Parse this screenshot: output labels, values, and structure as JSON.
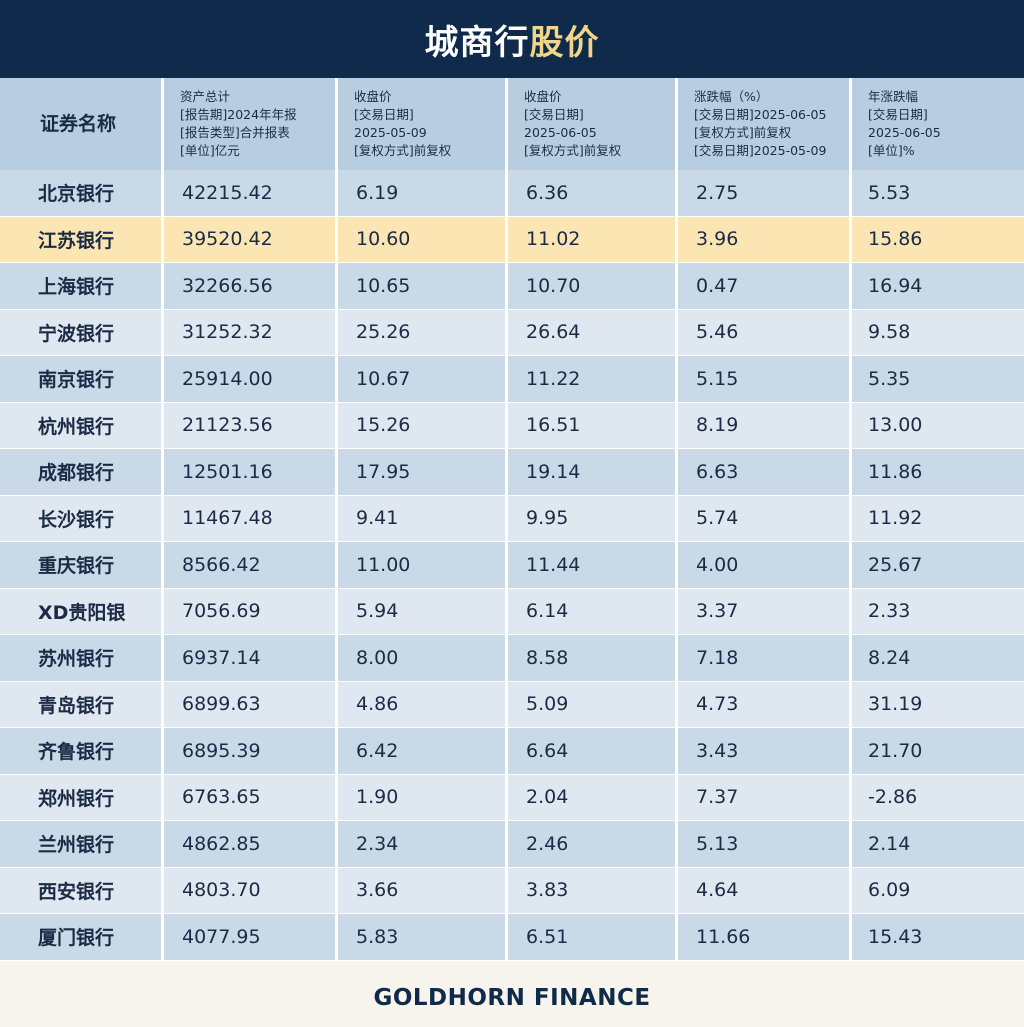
{
  "title": {
    "part1": "城商行",
    "part2": "股价"
  },
  "headers": [
    {
      "lines": [
        "证券名称"
      ]
    },
    {
      "lines": [
        "资产总计",
        "[报告期]2024年年报",
        "[报告类型]合并报表",
        "[单位]亿元"
      ]
    },
    {
      "lines": [
        "收盘价",
        "[交易日期]",
        "2025-05-09",
        "[复权方式]前复权"
      ]
    },
    {
      "lines": [
        "收盘价",
        "[交易日期]",
        "2025-06-05",
        "[复权方式]前复权"
      ]
    },
    {
      "lines": [
        "涨跌幅（%）",
        "[交易日期]2025-06-05",
        "[复权方式]前复权",
        "[交易日期]2025-05-09"
      ]
    },
    {
      "lines": [
        "年涨跌幅",
        "[交易日期]",
        "2025-06-05",
        "[单位]%"
      ]
    }
  ],
  "rows": [
    [
      "北京银行",
      "42215.42",
      "6.19",
      "6.36",
      "2.75",
      "5.53"
    ],
    [
      "江苏银行",
      "39520.42",
      "10.60",
      "11.02",
      "3.96",
      "15.86"
    ],
    [
      "上海银行",
      "32266.56",
      "10.65",
      "10.70",
      "0.47",
      "16.94"
    ],
    [
      "宁波银行",
      "31252.32",
      "25.26",
      "26.64",
      "5.46",
      "9.58"
    ],
    [
      "南京银行",
      "25914.00",
      "10.67",
      "11.22",
      "5.15",
      "5.35"
    ],
    [
      "杭州银行",
      "21123.56",
      "15.26",
      "16.51",
      "8.19",
      "13.00"
    ],
    [
      "成都银行",
      "12501.16",
      "17.95",
      "19.14",
      "6.63",
      "11.86"
    ],
    [
      "长沙银行",
      "11467.48",
      "9.41",
      "9.95",
      "5.74",
      "11.92"
    ],
    [
      "重庆银行",
      "8566.42",
      "11.00",
      "11.44",
      "4.00",
      "25.67"
    ],
    [
      "XD贵阳银",
      "7056.69",
      "5.94",
      "6.14",
      "3.37",
      "2.33"
    ],
    [
      "苏州银行",
      "6937.14",
      "8.00",
      "8.58",
      "7.18",
      "8.24"
    ],
    [
      "青岛银行",
      "6899.63",
      "4.86",
      "5.09",
      "4.73",
      "31.19"
    ],
    [
      "齐鲁银行",
      "6895.39",
      "6.42",
      "6.64",
      "3.43",
      "21.70"
    ],
    [
      "郑州银行",
      "6763.65",
      "1.90",
      "2.04",
      "7.37",
      "-2.86"
    ],
    [
      "兰州银行",
      "4862.85",
      "2.34",
      "2.46",
      "5.13",
      "2.14"
    ],
    [
      "西安银行",
      "4803.70",
      "3.66",
      "3.83",
      "4.64",
      "6.09"
    ],
    [
      "厦门银行",
      "4077.95",
      "5.83",
      "6.51",
      "11.66",
      "15.43"
    ]
  ],
  "highlighted_row": "江苏银行",
  "colors": {
    "title_bg": "#0f2a4a",
    "title_accent": "#f0d58a",
    "header_bg": "#b9cde0",
    "highlight": "#fbe6b3"
  },
  "footer": "GOLDHORN FINANCE"
}
